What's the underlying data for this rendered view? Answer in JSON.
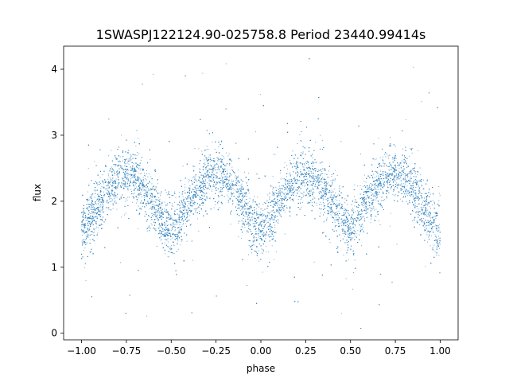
{
  "chart_data": {
    "type": "scatter",
    "title": "1SWASPJ122124.90-025758.8 Period 23440.99414s",
    "xlabel": "phase",
    "ylabel": "flux",
    "xlim": [
      -1.1,
      1.1
    ],
    "ylim": [
      -0.1,
      4.35
    ],
    "xticks": [
      -1.0,
      -0.75,
      -0.5,
      -0.25,
      0.0,
      0.25,
      0.5,
      0.75,
      1.0
    ],
    "xtick_labels": [
      "−1.00",
      "−0.75",
      "−0.50",
      "−0.25",
      "0.00",
      "0.25",
      "0.50",
      "0.75",
      "1.00"
    ],
    "yticks": [
      0,
      1,
      2,
      3,
      4
    ],
    "ytick_labels": [
      "0",
      "1",
      "2",
      "3",
      "4"
    ],
    "grid": false,
    "marker_color": "#3a87c2",
    "series": [
      {
        "phase": [
          -1.0,
          -0.95,
          -0.9,
          -0.85,
          -0.8,
          -0.75,
          -0.7,
          -0.65,
          -0.6,
          -0.55,
          -0.5,
          -0.45,
          -0.4,
          -0.35,
          -0.3,
          -0.25,
          -0.2,
          -0.15,
          -0.1,
          -0.05,
          0.0,
          0.05,
          0.1,
          0.15,
          0.2,
          0.25,
          0.3,
          0.35,
          0.4,
          0.45,
          0.5,
          0.55,
          0.6,
          0.65,
          0.7,
          0.75,
          0.8,
          0.85,
          0.9,
          0.95,
          1.0
        ],
        "flux_median": [
          1.5,
          1.72,
          1.98,
          2.2,
          2.35,
          2.4,
          2.35,
          2.2,
          1.98,
          1.72,
          1.55,
          1.75,
          2.0,
          2.22,
          2.37,
          2.42,
          2.37,
          2.2,
          1.97,
          1.7,
          1.5,
          1.72,
          1.98,
          2.2,
          2.35,
          2.4,
          2.35,
          2.2,
          1.98,
          1.72,
          1.55,
          1.75,
          2.0,
          2.22,
          2.37,
          2.42,
          2.37,
          2.2,
          1.97,
          1.7,
          1.5
        ],
        "flux_spread": [
          0.45,
          0.45,
          0.4,
          0.4,
          0.4,
          0.4,
          0.4,
          0.4,
          0.4,
          0.42,
          0.45,
          0.45,
          0.4,
          0.4,
          0.4,
          0.4,
          0.4,
          0.4,
          0.42,
          0.45,
          0.48,
          0.45,
          0.4,
          0.4,
          0.4,
          0.4,
          0.4,
          0.4,
          0.42,
          0.45,
          0.45,
          0.45,
          0.4,
          0.4,
          0.4,
          0.4,
          0.4,
          0.4,
          0.42,
          0.45,
          0.48
        ],
        "flux_min": 0.0,
        "flux_max": 4.2
      }
    ]
  }
}
